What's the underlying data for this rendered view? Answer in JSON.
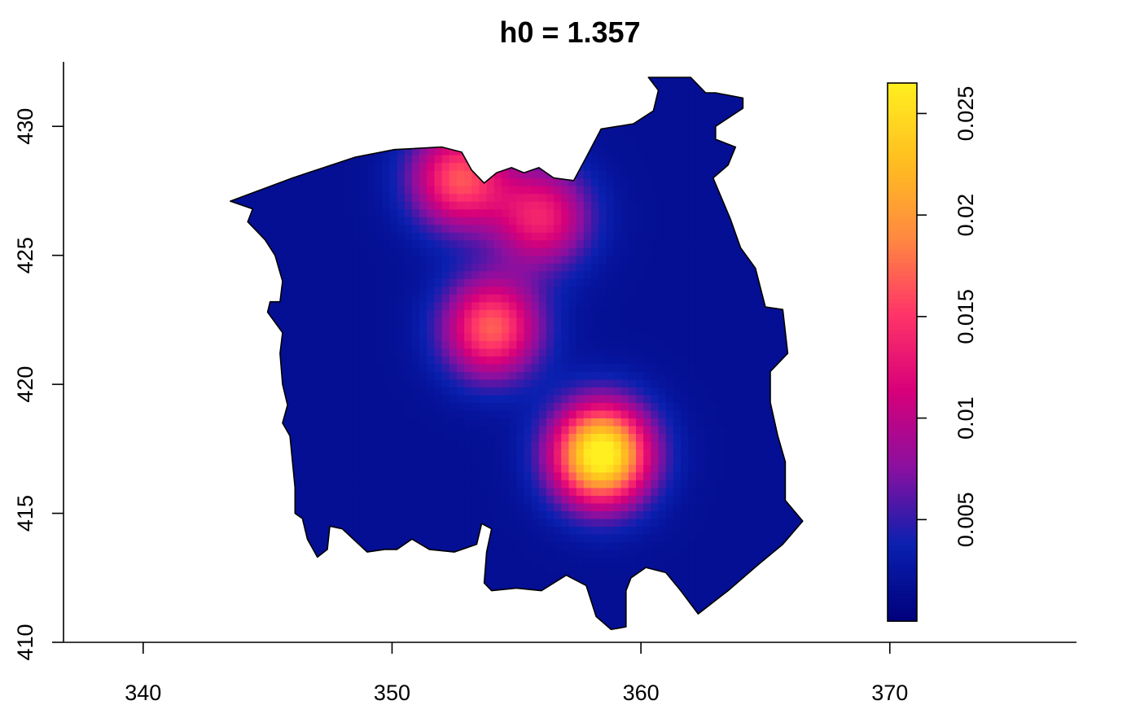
{
  "chart_data": {
    "type": "heatmap",
    "title": "h0 = 1.357",
    "xlabel": "",
    "ylabel": "",
    "xlim": [
      336.8,
      377.5
    ],
    "ylim": [
      410,
      432.5
    ],
    "x_ticks": [
      340,
      350,
      360,
      370
    ],
    "x_tick_labels": [
      "340",
      "350",
      "360",
      "370"
    ],
    "y_ticks": [
      410,
      415,
      420,
      425,
      430
    ],
    "y_tick_labels": [
      "410",
      "415",
      "420",
      "425",
      "430"
    ],
    "grid": false,
    "legend_position": "right",
    "colorbar": {
      "range": [
        0,
        0.0265
      ],
      "ticks": [
        0.005,
        0.01,
        0.015,
        0.02,
        0.025
      ],
      "tick_labels": [
        "0.005",
        "0.01",
        "0.015",
        "0.02",
        "0.025"
      ],
      "colors": [
        "#00007a",
        "#0a20b0",
        "#8a10a0",
        "#d8007a",
        "#ff3468",
        "#ff8a40",
        "#ffbe20",
        "#ffee20"
      ]
    },
    "density_peaks": [
      {
        "x": 352.7,
        "y": 428.0,
        "value": 0.0145
      },
      {
        "x": 356.0,
        "y": 426.5,
        "value": 0.0118
      },
      {
        "x": 354.0,
        "y": 422.2,
        "value": 0.0152
      },
      {
        "x": 358.4,
        "y": 417.3,
        "value": 0.0265
      }
    ],
    "background_density": 0.0018,
    "region_outline": [
      [
        343.5,
        427.1
      ],
      [
        346.0,
        428.0
      ],
      [
        348.5,
        428.8
      ],
      [
        350.1,
        429.1
      ],
      [
        352.0,
        429.2
      ],
      [
        352.8,
        429.0
      ],
      [
        353.2,
        428.3
      ],
      [
        353.7,
        427.8
      ],
      [
        354.2,
        428.2
      ],
      [
        354.8,
        428.4
      ],
      [
        355.3,
        428.2
      ],
      [
        355.9,
        428.4
      ],
      [
        356.5,
        428.0
      ],
      [
        357.3,
        427.9
      ],
      [
        357.8,
        428.8
      ],
      [
        358.4,
        429.9
      ],
      [
        359.7,
        430.1
      ],
      [
        360.5,
        430.6
      ],
      [
        360.7,
        431.4
      ],
      [
        360.3,
        431.9
      ],
      [
        361.1,
        431.9
      ],
      [
        362.0,
        431.9
      ],
      [
        362.6,
        431.3
      ],
      [
        363.0,
        431.3
      ],
      [
        364.1,
        431.1
      ],
      [
        364.1,
        430.7
      ],
      [
        363.0,
        430.0
      ],
      [
        363.0,
        429.5
      ],
      [
        363.8,
        429.2
      ],
      [
        363.5,
        428.5
      ],
      [
        362.9,
        428.0
      ],
      [
        363.6,
        426.4
      ],
      [
        364.0,
        425.3
      ],
      [
        364.6,
        424.5
      ],
      [
        365.0,
        423.0
      ],
      [
        365.7,
        422.9
      ],
      [
        365.9,
        421.2
      ],
      [
        365.2,
        420.5
      ],
      [
        365.2,
        419.3
      ],
      [
        365.5,
        418.0
      ],
      [
        365.8,
        417.0
      ],
      [
        365.8,
        415.5
      ],
      [
        366.5,
        414.7
      ],
      [
        365.7,
        413.8
      ],
      [
        364.7,
        413.0
      ],
      [
        363.5,
        412.0
      ],
      [
        362.3,
        411.1
      ],
      [
        361.6,
        412.0
      ],
      [
        361.0,
        412.7
      ],
      [
        360.2,
        412.9
      ],
      [
        359.6,
        412.5
      ],
      [
        359.4,
        412.0
      ],
      [
        359.4,
        411.4
      ],
      [
        359.4,
        410.6
      ],
      [
        358.8,
        410.5
      ],
      [
        358.2,
        411.0
      ],
      [
        357.8,
        412.2
      ],
      [
        357.0,
        412.6
      ],
      [
        356.0,
        412.0
      ],
      [
        355.0,
        412.1
      ],
      [
        354.0,
        412.0
      ],
      [
        353.7,
        412.3
      ],
      [
        353.8,
        413.5
      ],
      [
        354.0,
        414.4
      ],
      [
        353.6,
        414.6
      ],
      [
        353.4,
        413.8
      ],
      [
        352.5,
        413.5
      ],
      [
        351.5,
        413.6
      ],
      [
        350.8,
        414.0
      ],
      [
        350.2,
        413.6
      ],
      [
        349.7,
        413.6
      ],
      [
        349.0,
        413.5
      ],
      [
        348.0,
        414.4
      ],
      [
        347.5,
        414.5
      ],
      [
        347.4,
        413.6
      ],
      [
        347.0,
        413.3
      ],
      [
        346.6,
        414.0
      ],
      [
        346.4,
        414.8
      ],
      [
        346.1,
        415.0
      ],
      [
        346.1,
        416.0
      ],
      [
        346.0,
        417.0
      ],
      [
        345.9,
        418.0
      ],
      [
        345.6,
        418.5
      ],
      [
        345.8,
        419.2
      ],
      [
        345.6,
        420.0
      ],
      [
        345.5,
        421.2
      ],
      [
        345.6,
        422.0
      ],
      [
        345.0,
        422.8
      ],
      [
        345.1,
        423.2
      ],
      [
        345.5,
        423.2
      ],
      [
        345.6,
        424.0
      ],
      [
        345.3,
        425.0
      ],
      [
        344.9,
        425.6
      ],
      [
        344.5,
        426.0
      ],
      [
        344.2,
        426.3
      ],
      [
        344.4,
        426.8
      ]
    ]
  }
}
